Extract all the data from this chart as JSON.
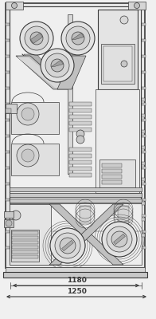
{
  "bg_color": "#f0f0f0",
  "line_color": "#3a3a3a",
  "fill_cabinet": "#e8e8e8",
  "fill_inner": "#f2f2f2",
  "fill_gray": "#d0d0d0",
  "fill_mid": "#b8b8b8",
  "fill_dark": "#909090",
  "dim1_label": "1180",
  "dim2_label": "1250"
}
